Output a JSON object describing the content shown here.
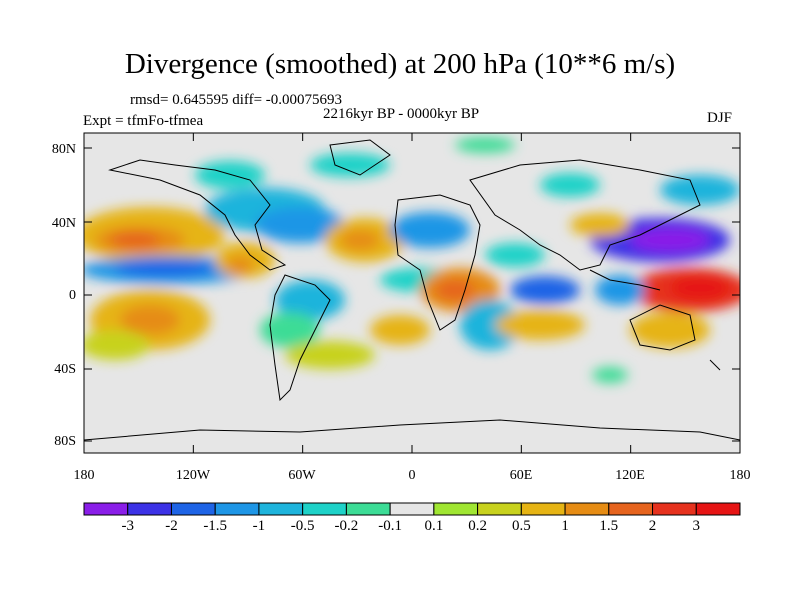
{
  "title": "Divergence (smoothed) at 200 hPa (10**6 m/s)",
  "stats": "rmsd= 0.645595 diff= -0.00075693",
  "period": "2216kyr BP - 0000kyr BP",
  "experiment": "Expt = tfmFo-tfmea",
  "season": "DJF",
  "lat_ticks": [
    "80N",
    "40N",
    "0",
    "40S",
    "80S"
  ],
  "lon_ticks": [
    "180",
    "120W",
    "60W",
    "0",
    "60E",
    "120E",
    "180"
  ],
  "colorbar": {
    "labels": [
      "-3",
      "-2",
      "-1.5",
      "-1",
      "-0.5",
      "-0.2",
      "-0.1",
      "0.1",
      "0.2",
      "0.5",
      "1",
      "1.5",
      "2",
      "3"
    ],
    "colors": [
      "#8a1ee8",
      "#3c32e6",
      "#1e64e6",
      "#1e96e6",
      "#1eb4dc",
      "#1ed2c8",
      "#3cdc96",
      "#e6e6e6",
      "#a0e632",
      "#c8d21e",
      "#e6b414",
      "#e68c14",
      "#e6641e",
      "#e6321e",
      "#e61414"
    ]
  }
}
